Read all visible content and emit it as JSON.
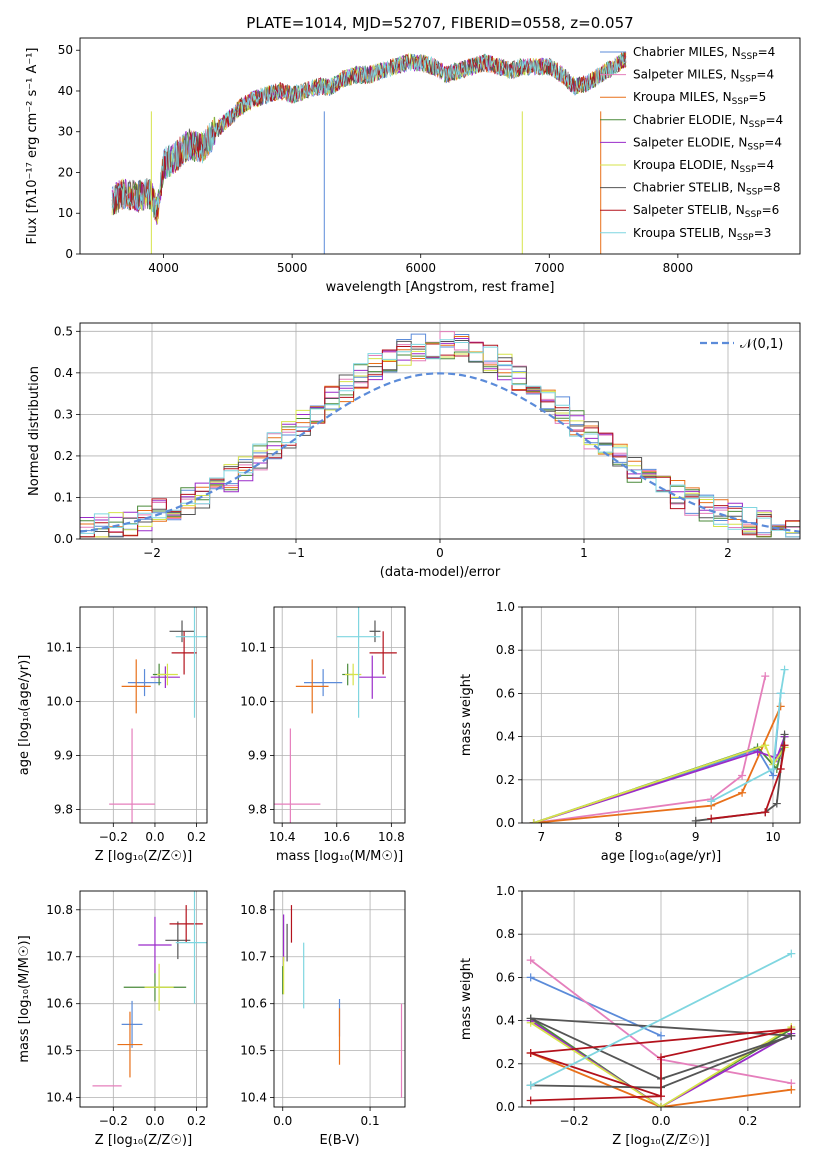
{
  "figure_title": "PLATE=1014, MJD=52707, FIBERID=0558, z=0.057",
  "models": [
    {
      "name": "Chabrier MILES",
      "nssp": "4",
      "color": "#5b8bd9"
    },
    {
      "name": "Salpeter MILES",
      "nssp": "4",
      "color": "#e57fbc"
    },
    {
      "name": "Kroupa MILES",
      "nssp": "5",
      "color": "#e8701a"
    },
    {
      "name": "Chabrier ELODIE",
      "nssp": "4",
      "color": "#4a8a3a"
    },
    {
      "name": "Salpeter ELODIE",
      "nssp": "4",
      "color": "#9a2bc9"
    },
    {
      "name": "Kroupa ELODIE",
      "nssp": "4",
      "color": "#d6e34a"
    },
    {
      "name": "Chabrier STELIB",
      "nssp": "8",
      "color": "#555555"
    },
    {
      "name": "Salpeter STELIB",
      "nssp": "6",
      "color": "#b3121c"
    },
    {
      "name": "Kroupa STELIB",
      "nssp": "3",
      "color": "#7fd6e0"
    }
  ],
  "legend_prefix_sub": "SSP",
  "chart_data": [
    {
      "id": "spectrum",
      "type": "line",
      "xlabel": "wavelength [Angstrom, rest frame]",
      "ylabel": "Flux [fλ10⁻¹⁷ erg cm⁻² s⁻¹ A⁻¹]",
      "xlim": [
        3350,
        8950
      ],
      "ylim": [
        0,
        53
      ],
      "xticks": [
        4000,
        5000,
        6000,
        7000,
        8000
      ],
      "yticks": [
        0,
        10,
        20,
        30,
        40,
        50
      ],
      "legend_loc": "right",
      "envelope": {
        "wavelength": [
          3600,
          3700,
          3800,
          3900,
          3950,
          4000,
          4100,
          4200,
          4300,
          4400,
          4500,
          4600,
          4700,
          4800,
          4900,
          5000,
          5100,
          5200,
          5300,
          5400,
          5500,
          5600,
          5700,
          5800,
          5900,
          6000,
          6100,
          6200,
          6300,
          6400,
          6500,
          6600,
          6700,
          6800,
          6900,
          7000,
          7100,
          7200,
          7300,
          7400,
          7500,
          7600
        ],
        "flux": [
          13,
          15,
          14,
          15,
          10,
          22,
          24,
          27,
          26,
          30,
          33,
          36,
          38,
          39,
          40,
          39,
          40,
          41,
          41,
          43,
          44,
          44,
          45,
          46,
          47,
          47,
          46,
          44,
          45,
          46,
          47,
          46,
          45,
          46,
          46,
          46,
          44,
          41,
          42,
          44,
          46,
          48
        ]
      }
    },
    {
      "id": "residuals",
      "type": "histogram",
      "xlabel": "(data-model)/error",
      "ylabel": "Normed distribution",
      "xlim": [
        -2.5,
        2.5
      ],
      "ylim": [
        0,
        0.52
      ],
      "xticks": [
        -2,
        -1,
        0,
        1,
        2
      ],
      "yticks": [
        0.0,
        0.1,
        0.2,
        0.3,
        0.4,
        0.5
      ],
      "reference_curve": "𝒩(0,1)",
      "legend_loc": "upper right",
      "bin_width": 0.1
    },
    {
      "id": "age_vs_Z",
      "type": "errorbar",
      "xlabel": "Z [log₁₀(Z/Z☉)]",
      "ylabel": "age  [log₁₀(age/yr)]",
      "xlim": [
        -0.36,
        0.25
      ],
      "ylim": [
        9.775,
        10.175
      ],
      "xticks": [
        -0.2,
        0.0,
        0.2
      ],
      "yticks": [
        9.8,
        9.9,
        10.0,
        10.1
      ],
      "points": [
        {
          "model": 0,
          "x": -0.05,
          "y": 10.035,
          "xerr": 0.08,
          "yerr": 0.025
        },
        {
          "model": 1,
          "x": -0.11,
          "y": 9.81,
          "xerr": 0.11,
          "yerr": 0.14
        },
        {
          "model": 2,
          "x": -0.09,
          "y": 10.028,
          "xerr": 0.07,
          "yerr": 0.05
        },
        {
          "model": 3,
          "x": 0.02,
          "y": 10.05,
          "xerr": 0.03,
          "yerr": 0.02
        },
        {
          "model": 4,
          "x": 0.05,
          "y": 10.045,
          "xerr": 0.07,
          "yerr": 0.02
        },
        {
          "model": 5,
          "x": 0.06,
          "y": 10.05,
          "xerr": 0.05,
          "yerr": 0.02
        },
        {
          "model": 6,
          "x": 0.13,
          "y": 10.13,
          "xerr": 0.06,
          "yerr": 0.02
        },
        {
          "model": 7,
          "x": 0.14,
          "y": 10.09,
          "xerr": 0.06,
          "yerr": 0.04
        },
        {
          "model": 8,
          "x": 0.19,
          "y": 10.12,
          "xerr": 0.09,
          "yerr": 0.15
        }
      ]
    },
    {
      "id": "age_vs_mass",
      "type": "errorbar",
      "xlabel": "mass [log₁₀(M/M☉)]",
      "ylabel": "",
      "xlim": [
        10.37,
        10.85
      ],
      "ylim": [
        9.775,
        10.175
      ],
      "xticks": [
        10.4,
        10.6,
        10.8
      ],
      "yticks": [
        9.8,
        9.9,
        10.0,
        10.1
      ],
      "points": [
        {
          "model": 0,
          "x": 10.55,
          "y": 10.035,
          "xerr": 0.07,
          "yerr": 0.025
        },
        {
          "model": 1,
          "x": 10.43,
          "y": 9.81,
          "xerr": 0.11,
          "yerr": 0.14
        },
        {
          "model": 2,
          "x": 10.51,
          "y": 10.028,
          "xerr": 0.06,
          "yerr": 0.05
        },
        {
          "model": 3,
          "x": 10.64,
          "y": 10.05,
          "xerr": 0.02,
          "yerr": 0.02
        },
        {
          "model": 4,
          "x": 10.73,
          "y": 10.045,
          "xerr": 0.05,
          "yerr": 0.04
        },
        {
          "model": 5,
          "x": 10.66,
          "y": 10.05,
          "xerr": 0.03,
          "yerr": 0.02
        },
        {
          "model": 6,
          "x": 10.74,
          "y": 10.13,
          "xerr": 0.02,
          "yerr": 0.02
        },
        {
          "model": 7,
          "x": 10.77,
          "y": 10.09,
          "xerr": 0.05,
          "yerr": 0.04
        },
        {
          "model": 8,
          "x": 10.68,
          "y": 10.12,
          "xerr": 0.08,
          "yerr": 0.15
        }
      ]
    },
    {
      "id": "weight_vs_age",
      "type": "line",
      "xlabel": "age  [log₁₀(age/yr)]",
      "ylabel": "mass weight",
      "xlim": [
        6.75,
        10.35
      ],
      "ylim": [
        0,
        1.0
      ],
      "xticks": [
        7,
        8,
        9,
        10
      ],
      "yticks": [
        0.0,
        0.2,
        0.4,
        0.6,
        0.8,
        1.0
      ],
      "series": [
        {
          "model": 0,
          "x": [
            6.9,
            9.8,
            10.0,
            10.1
          ],
          "y": [
            0.0,
            0.34,
            0.22,
            0.6
          ]
        },
        {
          "model": 1,
          "x": [
            6.9,
            9.2,
            9.6,
            9.9
          ],
          "y": [
            0.0,
            0.11,
            0.22,
            0.68
          ]
        },
        {
          "model": 2,
          "x": [
            6.9,
            9.2,
            9.6,
            10.1
          ],
          "y": [
            0.0,
            0.08,
            0.14,
            0.54
          ]
        },
        {
          "model": 3,
          "x": [
            6.9,
            9.8,
            10.05,
            10.15
          ],
          "y": [
            0.0,
            0.35,
            0.25,
            0.4
          ]
        },
        {
          "model": 4,
          "x": [
            6.9,
            9.8,
            10.05,
            10.15
          ],
          "y": [
            0.0,
            0.33,
            0.3,
            0.4
          ]
        },
        {
          "model": 5,
          "x": [
            6.9,
            9.9,
            10.0,
            10.15
          ],
          "y": [
            0.0,
            0.36,
            0.27,
            0.35
          ]
        },
        {
          "model": 6,
          "x": [
            9.0,
            9.9,
            10.05,
            10.15
          ],
          "y": [
            0.01,
            0.05,
            0.09,
            0.41
          ]
        },
        {
          "model": 7,
          "x": [
            9.2,
            9.9,
            10.1,
            10.15
          ],
          "y": [
            0.02,
            0.05,
            0.25,
            0.36
          ]
        },
        {
          "model": 8,
          "x": [
            9.2,
            10.0,
            10.1,
            10.15
          ],
          "y": [
            0.1,
            0.25,
            0.6,
            0.71
          ]
        }
      ]
    },
    {
      "id": "mass_vs_Z",
      "type": "errorbar",
      "xlabel": "Z [log₁₀(Z/Z☉)]",
      "ylabel": "mass [log₁₀(M/M☉)]",
      "xlim": [
        -0.36,
        0.25
      ],
      "ylim": [
        10.38,
        10.84
      ],
      "xticks": [
        -0.2,
        0.0,
        0.2
      ],
      "yticks": [
        10.4,
        10.5,
        10.6,
        10.7,
        10.8
      ],
      "points": [
        {
          "model": 0,
          "x": -0.11,
          "y": 10.556,
          "xerr": 0.05,
          "yerr": 0.05
        },
        {
          "model": 1,
          "x": -0.23,
          "y": 10.425,
          "xerr": 0.07,
          "yerr": 0.0
        },
        {
          "model": 2,
          "x": -0.12,
          "y": 10.513,
          "xerr": 0.06,
          "yerr": 0.07
        },
        {
          "model": 3,
          "x": 0.0,
          "y": 10.635,
          "xerr": 0.15,
          "yerr": 0.03
        },
        {
          "model": 4,
          "x": 0.0,
          "y": 10.725,
          "xerr": 0.08,
          "yerr": 0.06
        },
        {
          "model": 5,
          "x": 0.02,
          "y": 10.635,
          "xerr": 0.07,
          "yerr": 0.05
        },
        {
          "model": 6,
          "x": 0.11,
          "y": 10.735,
          "xerr": 0.06,
          "yerr": 0.04
        },
        {
          "model": 7,
          "x": 0.15,
          "y": 10.77,
          "xerr": 0.08,
          "yerr": 0.04
        },
        {
          "model": 8,
          "x": 0.19,
          "y": 10.73,
          "xerr": 0.09,
          "yerr": 0.13
        }
      ]
    },
    {
      "id": "mass_vs_EBV",
      "type": "errorbar",
      "xlabel": "E(B-V)",
      "ylabel": "",
      "xlim": [
        -0.01,
        0.14
      ],
      "ylim": [
        10.38,
        10.84
      ],
      "xticks": [
        0.0,
        0.1
      ],
      "yticks": [
        10.4,
        10.5,
        10.6,
        10.7,
        10.8
      ],
      "points": [
        {
          "model": 0,
          "x": 0.065,
          "y": 10.57,
          "xerr": 0.0,
          "yerr": 0.04
        },
        {
          "model": 1,
          "x": 0.136,
          "y": 10.5,
          "xerr": 0.0,
          "yerr": 0.1
        },
        {
          "model": 2,
          "x": 0.065,
          "y": 10.53,
          "xerr": 0.0,
          "yerr": 0.06
        },
        {
          "model": 3,
          "x": 0.0,
          "y": 10.65,
          "xerr": 0.0,
          "yerr": 0.03
        },
        {
          "model": 4,
          "x": 0.001,
          "y": 10.74,
          "xerr": 0.0,
          "yerr": 0.05
        },
        {
          "model": 5,
          "x": 0.001,
          "y": 10.66,
          "xerr": 0.0,
          "yerr": 0.04
        },
        {
          "model": 6,
          "x": 0.005,
          "y": 10.73,
          "xerr": 0.0,
          "yerr": 0.04
        },
        {
          "model": 7,
          "x": 0.01,
          "y": 10.77,
          "xerr": 0.0,
          "yerr": 0.04
        },
        {
          "model": 8,
          "x": 0.024,
          "y": 10.66,
          "xerr": 0.0,
          "yerr": 0.07
        }
      ]
    },
    {
      "id": "weight_vs_Z",
      "type": "line",
      "xlabel": "Z [log₁₀(Z/Z☉)]",
      "ylabel": "mass weight",
      "xlim": [
        -0.32,
        0.32
      ],
      "ylim": [
        0,
        1.0
      ],
      "xticks": [
        -0.2,
        0.0,
        0.2
      ],
      "yticks": [
        0.0,
        0.2,
        0.4,
        0.6,
        0.8,
        1.0
      ],
      "series": [
        {
          "model": 0,
          "x": [
            -0.3,
            0.0
          ],
          "y": [
            0.6,
            0.33
          ]
        },
        {
          "model": 1,
          "x": [
            -0.3,
            0.0,
            0.3
          ],
          "y": [
            0.68,
            0.22,
            0.11
          ]
        },
        {
          "model": 2,
          "x": [
            -0.3,
            0.0,
            0.3
          ],
          "y": [
            0.25,
            0.0,
            0.08
          ]
        },
        {
          "model": 3,
          "x": [
            -0.3,
            0.0,
            0.3
          ],
          "y": [
            0.41,
            0.0,
            0.36
          ]
        },
        {
          "model": 4,
          "x": [
            -0.3,
            0.0,
            0.3
          ],
          "y": [
            0.4,
            0.0,
            0.34
          ]
        },
        {
          "model": 5,
          "x": [
            -0.3,
            0.0,
            0.3
          ],
          "y": [
            0.39,
            0.0,
            0.37
          ]
        },
        {
          "model": 6,
          "x": [
            -0.3,
            0.0,
            0.3,
            -0.3,
            0.0,
            0.3
          ],
          "y": [
            0.1,
            0.09,
            0.33,
            0.41,
            0.13,
            0.33
          ]
        },
        {
          "model": 7,
          "x": [
            -0.3,
            0.0,
            0.0,
            0.3,
            -0.3,
            0.0
          ],
          "y": [
            0.03,
            0.05,
            0.23,
            0.36,
            0.25,
            0.05
          ]
        },
        {
          "model": 8,
          "x": [
            -0.3,
            0.3
          ],
          "y": [
            0.1,
            0.71
          ]
        }
      ]
    }
  ]
}
